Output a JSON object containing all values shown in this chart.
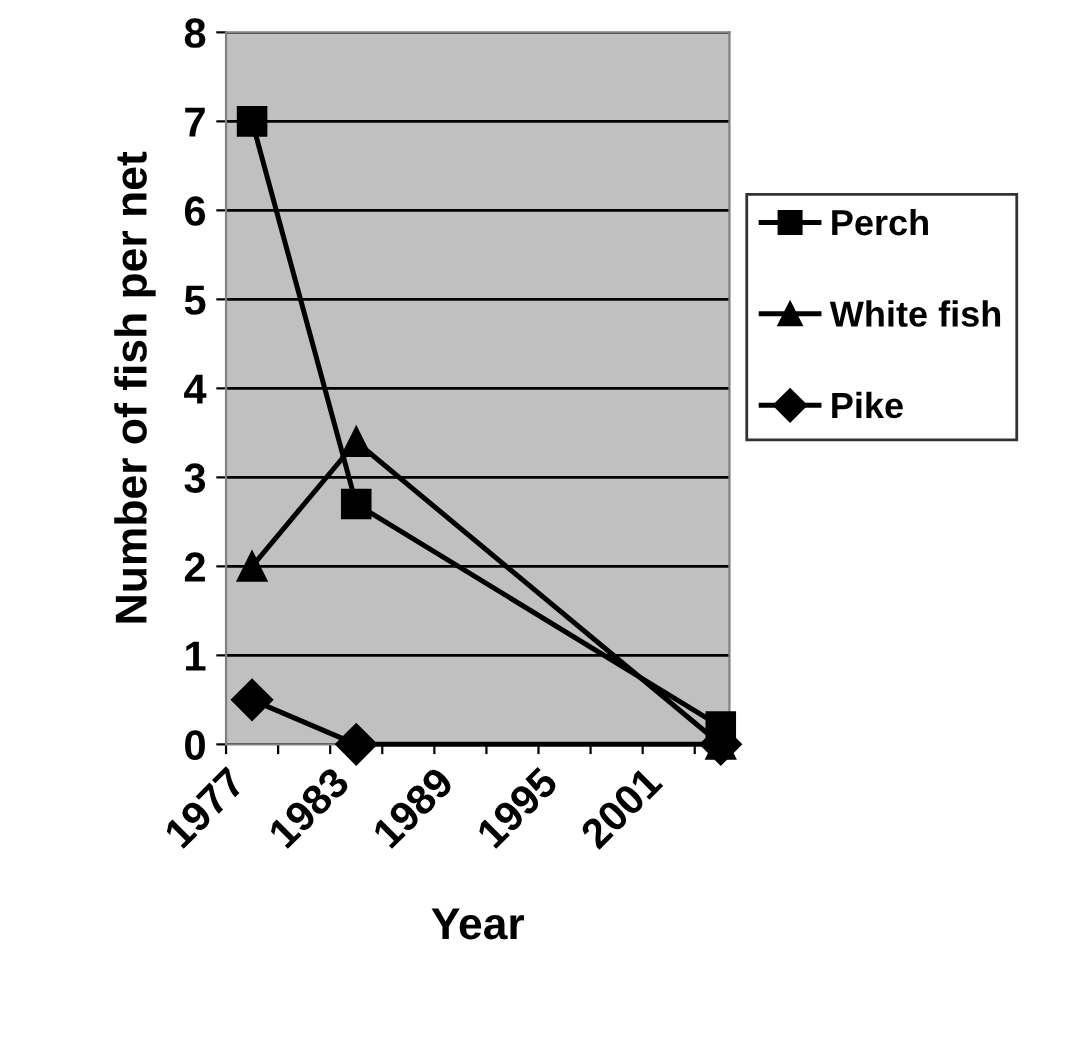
{
  "chart_data": {
    "type": "line",
    "xlabel": "Year",
    "ylabel": "Number of fish per net",
    "x": [
      1978.5,
      1984.5,
      2005.5
    ],
    "series": [
      {
        "name": "Perch",
        "color": "#000000",
        "marker": "square",
        "values": [
          7,
          2.7,
          0.2
        ]
      },
      {
        "name": "White fish",
        "color": "#000000",
        "marker": "triangle",
        "values": [
          2.0,
          3.4,
          0
        ]
      },
      {
        "name": "Pike",
        "color": "#000000",
        "marker": "diamond",
        "values": [
          0.5,
          0,
          0
        ]
      }
    ],
    "xlim": [
      1977,
      2006
    ],
    "xticks": [
      1977,
      {
        "value": 1980,
        "label": null
      },
      1983,
      {
        "value": 1986,
        "label": null
      },
      1989,
      {
        "value": 1992,
        "label": null
      },
      1995,
      {
        "value": 1998,
        "label": null
      },
      2001,
      {
        "value": 2004,
        "label": null
      }
    ],
    "ylim": [
      0,
      8
    ],
    "yticks": [
      0,
      1,
      2,
      3,
      4,
      5,
      6,
      7,
      8
    ],
    "grid": "y",
    "legend": "right",
    "line_style": "solid"
  }
}
